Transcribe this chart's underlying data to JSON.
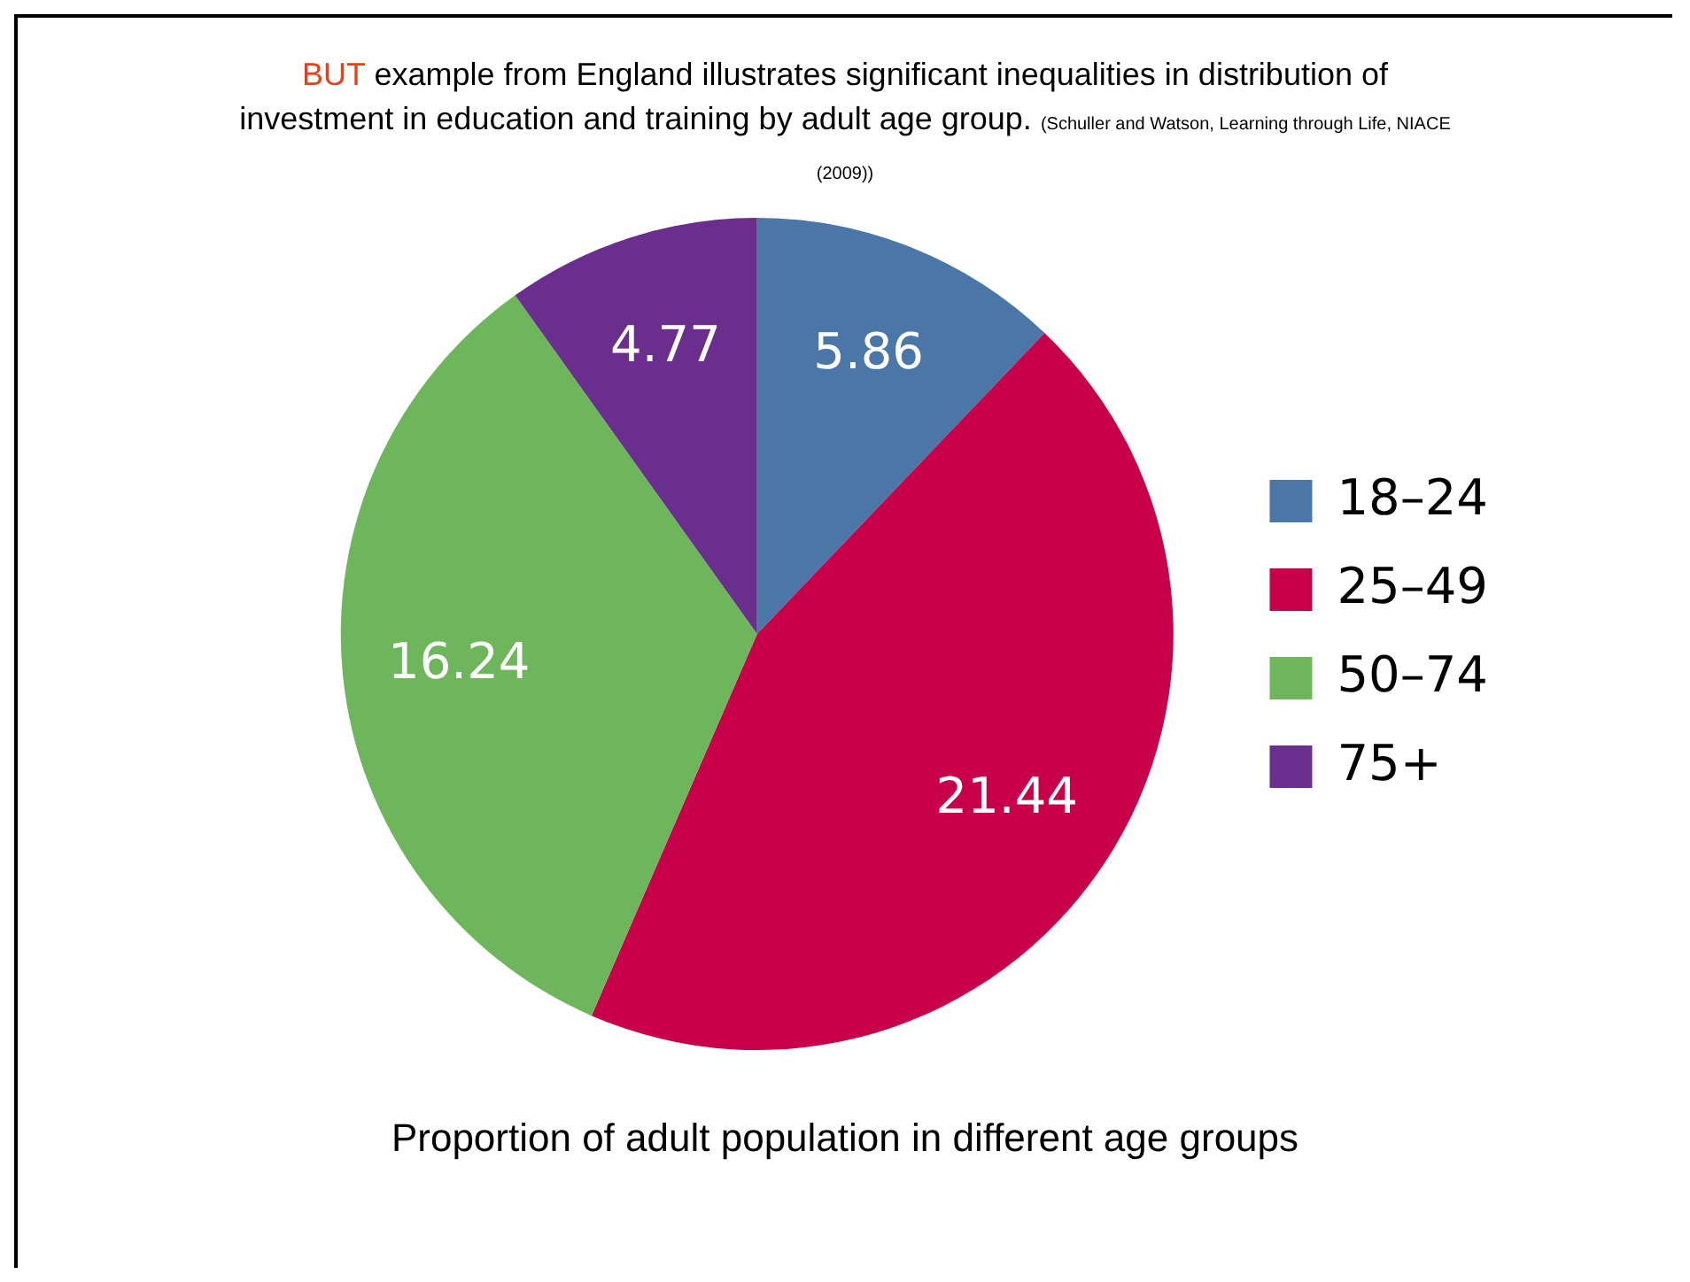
{
  "chart_data": {
    "type": "pie",
    "title": "BUT example from England illustrates significant inequalities in distribution of investment in education and training by adult age group.",
    "annotations": [
      "(Schuller and Watson, Learning through Life, NIACE (2009))",
      "Proportion of adult population in different age groups"
    ],
    "categories": [
      "18–24",
      "25–49",
      "50–74",
      "75+"
    ],
    "values": [
      5.86,
      21.44,
      16.24,
      4.77
    ],
    "colors": [
      "#4a76a8",
      "#c8004a",
      "#6db65b",
      "#6a2f8c"
    ],
    "data_labels": true,
    "legend": "right"
  }
}
